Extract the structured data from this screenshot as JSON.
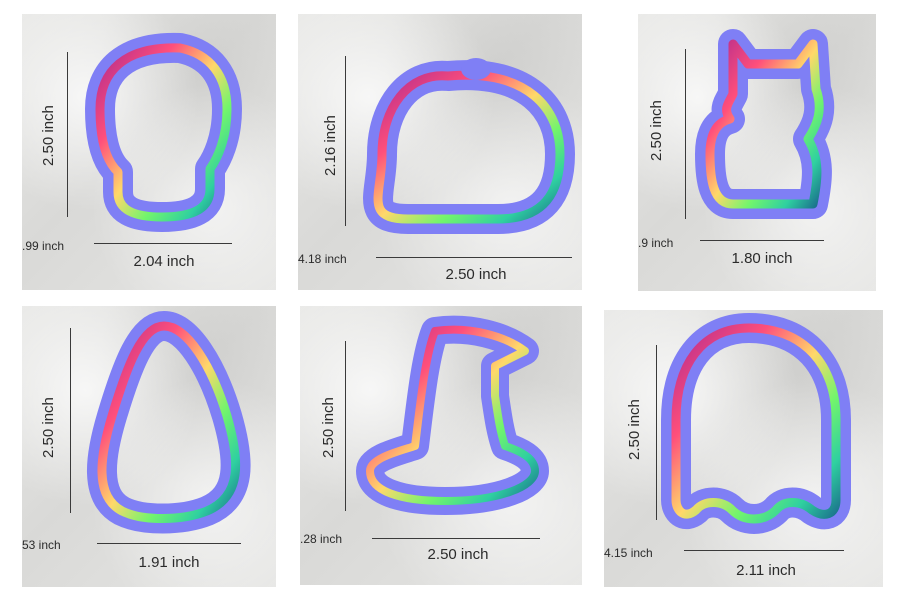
{
  "panels": [
    {
      "id": "skull",
      "height_label": "2.50 inch",
      "width_label": "2.04 inch",
      "depth_label": ".99 inch"
    },
    {
      "id": "pumpkin",
      "height_label": "2.16 inch",
      "width_label": "2.50 inch",
      "depth_label": "4.18 inch"
    },
    {
      "id": "cat",
      "height_label": "2.50 inch",
      "width_label": "1.80 inch",
      "depth_label": ".9 inch"
    },
    {
      "id": "candy-corn",
      "height_label": "2.50 inch",
      "width_label": "1.91 inch",
      "depth_label": "53 inch"
    },
    {
      "id": "witch-hat",
      "height_label": "2.50 inch",
      "width_label": "2.50 inch",
      "depth_label": ".28 inch"
    },
    {
      "id": "ghost",
      "height_label": "2.50 inch",
      "width_label": "2.11 inch",
      "depth_label": "4.15 inch"
    }
  ],
  "colors": {
    "outer_band": "#7f7ff5",
    "inner_gradient": [
      "#8a1fa0",
      "#ff4f7b",
      "#ffd86a",
      "#72f56c",
      "#2fd0a0",
      "#1a6e8c"
    ]
  }
}
